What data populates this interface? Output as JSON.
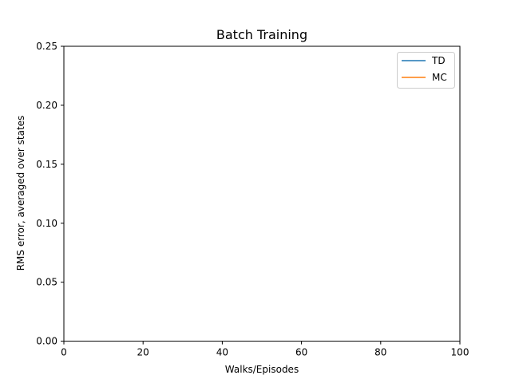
{
  "chart_data": {
    "type": "line",
    "title": "Batch Training",
    "xlabel": "Walks/Episodes",
    "ylabel": "RMS error, averaged over states",
    "xlim": [
      0,
      100
    ],
    "ylim": [
      0,
      0.25
    ],
    "xticks": [
      "0",
      "20",
      "40",
      "60",
      "80",
      "100"
    ],
    "yticks": [
      "0.00",
      "0.05",
      "0.10",
      "0.15",
      "0.20",
      "0.25"
    ],
    "grid": false,
    "legend": "top-right",
    "series": [
      {
        "name": "TD",
        "color": "#1f77b4",
        "x": [],
        "y": []
      },
      {
        "name": "MC",
        "color": "#ff7f0e",
        "x": [],
        "y": []
      }
    ]
  }
}
